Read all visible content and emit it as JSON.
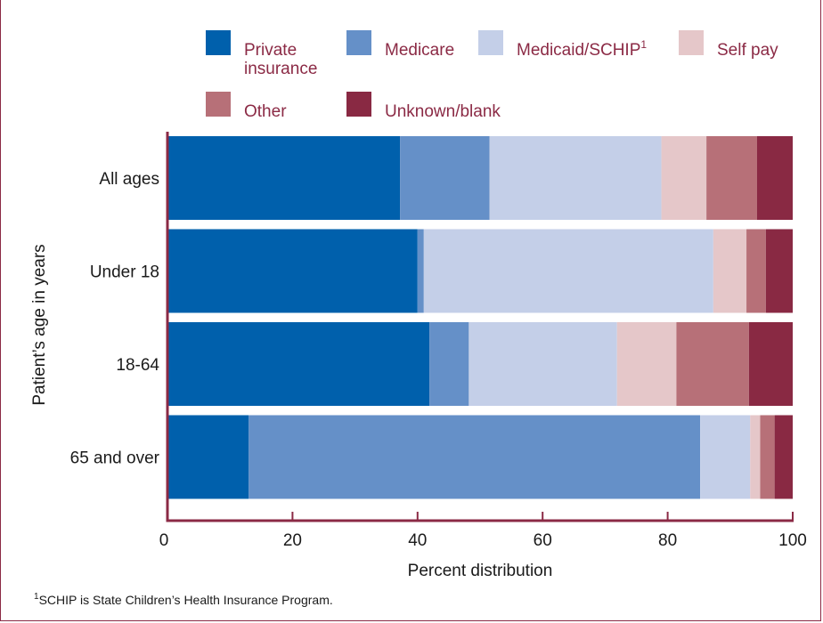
{
  "chart_data": {
    "type": "bar",
    "orientation": "horizontal",
    "stacked": true,
    "categories": [
      "All ages",
      "Under 18",
      "18-64",
      "65 and over"
    ],
    "series": [
      {
        "name": "Private insurance",
        "color": "#0060ac",
        "values": [
          37.2,
          40.0,
          41.9,
          13.0
        ]
      },
      {
        "name": "Medicare",
        "color": "#6590c8",
        "values": [
          14.3,
          1.0,
          6.3,
          72.2
        ]
      },
      {
        "name": "Medicaid/SCHIP",
        "color": "#c4cfe8",
        "values": [
          27.5,
          46.3,
          23.7,
          8.0
        ]
      },
      {
        "name": "Self pay",
        "color": "#e5c7c9",
        "values": [
          7.2,
          5.3,
          9.5,
          1.6
        ]
      },
      {
        "name": "Other",
        "color": "#b77078",
        "values": [
          8.1,
          3.1,
          11.6,
          2.3
        ]
      },
      {
        "name": "Unknown/blank",
        "color": "#892943",
        "values": [
          5.7,
          4.3,
          7.0,
          2.9
        ]
      }
    ],
    "legend_labels": [
      "Private\ninsurance",
      "Medicare",
      "Medicaid/SCHIP",
      "Self pay",
      "Other",
      "Unknown/blank"
    ],
    "legend_superscripts": [
      "",
      "",
      "1",
      "",
      "",
      ""
    ],
    "legend_placement": "top",
    "xlabel": "Percent distribution",
    "ylabel": "Patient’s age in years",
    "xlim": [
      0,
      100
    ],
    "xticks": [
      "0",
      "20",
      "40",
      "60",
      "80",
      "100"
    ],
    "grid": false
  },
  "footnote": {
    "marker": "1",
    "text": "SCHIP is State Children’s Health Insurance Program."
  }
}
